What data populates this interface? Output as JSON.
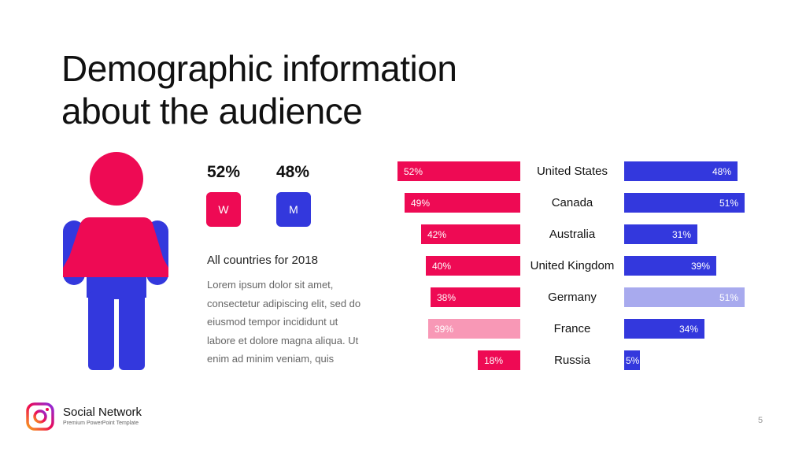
{
  "slide": {
    "title_line1": "Demographic information",
    "title_line2": "about the audience",
    "page_number": "5"
  },
  "gender": {
    "women": {
      "percent": "52%",
      "label": "W",
      "color": "#ee0a54"
    },
    "men": {
      "percent": "48%",
      "label": "M",
      "color": "#3338dd"
    }
  },
  "description": {
    "heading": "All countries for 2018",
    "text": "Lorem ipsum dolor sit amet, consectetur adipiscing elit, sed do eiusmod tempor incididunt ut labore et dolore magna aliqua. Ut enim ad minim veniam, quis"
  },
  "footer": {
    "brand": "Social Network",
    "tagline": "Premium PowerPoint Template",
    "logo_icon": "instagram-icon"
  },
  "colors": {
    "women": "#ee0a54",
    "women_light": "#f898b6",
    "men": "#3338dd",
    "men_light": "#a8aaee"
  },
  "chart_data": {
    "type": "bar",
    "categories": [
      "United States",
      "Canada",
      "Australia",
      "United Kingdom",
      "Germany",
      "France",
      "Russia"
    ],
    "series": [
      {
        "values": [
          52,
          49,
          42,
          40,
          38,
          39,
          18
        ],
        "labels": [
          "52%",
          "49%",
          "42%",
          "40%",
          "38%",
          "39%",
          "18%"
        ],
        "direction": "left",
        "color": "#ee0a54"
      },
      {
        "values": [
          48,
          51,
          31,
          39,
          51,
          34,
          5
        ],
        "labels": [
          "48%",
          "51%",
          "31%",
          "39%",
          "51%",
          "34%",
          "5%"
        ],
        "direction": "right",
        "color": "#3338dd"
      }
    ],
    "highlight_light": {
      "left_index": 5,
      "right_index": 4
    },
    "xlabel": "",
    "ylabel": "",
    "grid": false,
    "legend": "none"
  }
}
